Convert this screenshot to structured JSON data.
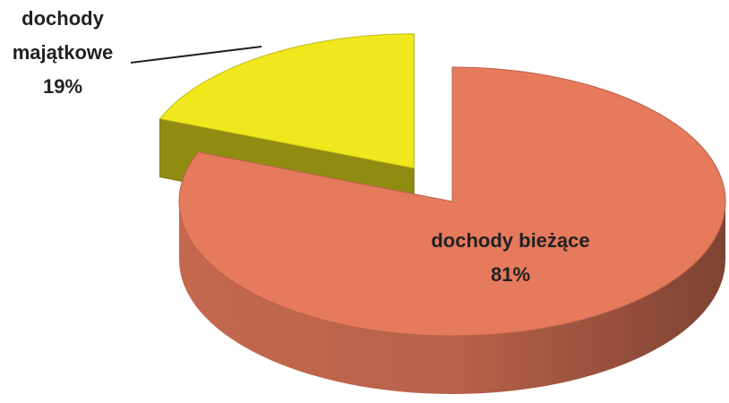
{
  "chart_data": {
    "type": "pie3d",
    "categories": [
      "dochody bieżące",
      "dochody majątkowe"
    ],
    "values": [
      81,
      19
    ],
    "value_labels": [
      "81%",
      "19%"
    ],
    "colors": [
      "#e67a5c",
      "#f0e81c"
    ],
    "exploded": [
      false,
      true
    ]
  }
}
